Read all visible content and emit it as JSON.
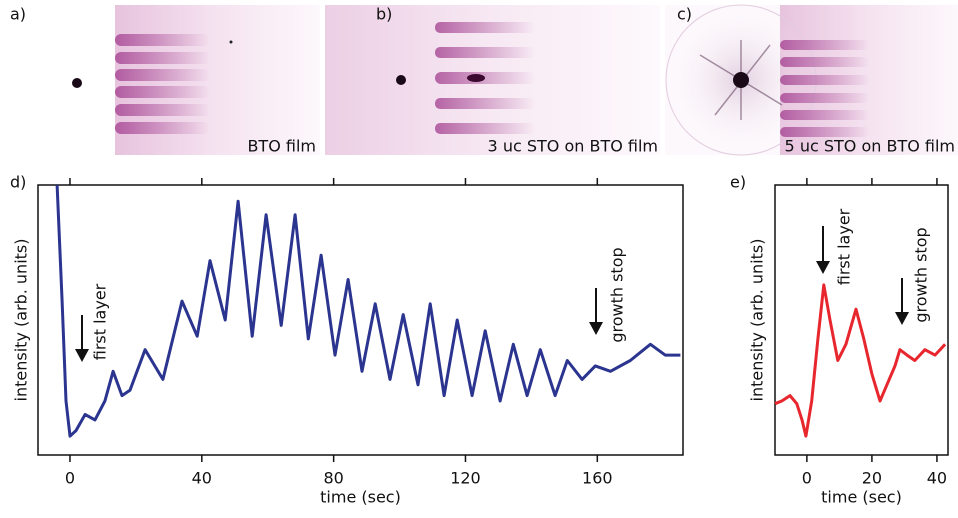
{
  "images": [
    {
      "label": "a)",
      "caption": "BTO film"
    },
    {
      "label": "b)",
      "caption": "3 uc STO on BTO film"
    },
    {
      "label": "c)",
      "caption": "5 uc STO on BTO film"
    }
  ],
  "chart_data": [
    {
      "type": "line",
      "panel_label": "d)",
      "xlabel": "time (sec)",
      "ylabel": "intensity (arb. units)",
      "color": "#2b3590",
      "annotations": [
        "first layer",
        "growth stop"
      ],
      "xlim": [
        -9.7,
        186
      ],
      "xticks": [
        0,
        40,
        80,
        120,
        160
      ],
      "ylim": [
        0,
        1
      ],
      "x": [
        -3.9,
        -2.4,
        -1.2,
        0,
        1.8,
        4.6,
        7.6,
        10.6,
        13.1,
        15.8,
        18.2,
        22.8,
        28.2,
        34,
        38.6,
        42.5,
        47.1,
        51,
        55.3,
        59.5,
        64.1,
        68.3,
        72.3,
        76.2,
        80.4,
        84.4,
        88.6,
        92.6,
        97.1,
        101.1,
        105.6,
        109.3,
        113.5,
        117.5,
        122,
        126,
        130.5,
        134.5,
        138.7,
        142.7,
        147.2,
        150.9,
        155.4,
        159.4,
        164,
        170,
        176.1,
        180.6,
        185.2
      ],
      "values": [
        1.0,
        0.57,
        0.2,
        0.07,
        0.09,
        0.15,
        0.13,
        0.2,
        0.31,
        0.22,
        0.24,
        0.39,
        0.28,
        0.57,
        0.44,
        0.72,
        0.5,
        0.94,
        0.44,
        0.89,
        0.48,
        0.89,
        0.43,
        0.74,
        0.37,
        0.65,
        0.31,
        0.56,
        0.28,
        0.52,
        0.26,
        0.56,
        0.22,
        0.5,
        0.22,
        0.46,
        0.2,
        0.41,
        0.22,
        0.39,
        0.22,
        0.35,
        0.28,
        0.33,
        0.31,
        0.35,
        0.41,
        0.37,
        0.37
      ]
    },
    {
      "type": "line",
      "panel_label": "e)",
      "xlabel": "time (sec)",
      "ylabel": "intensity (arb. units)",
      "color": "#e8262d",
      "annotations": [
        "first layer",
        "growth stop"
      ],
      "xlim": [
        -9.8,
        43.4
      ],
      "xticks": [
        0,
        20,
        40
      ],
      "ylim": [
        0,
        1
      ],
      "x": [
        -9.8,
        -7.7,
        -5.2,
        -3.1,
        -1.5,
        -0.3,
        1.5,
        3.4,
        5.2,
        7.1,
        9.5,
        12,
        15.1,
        17.5,
        20,
        22.5,
        24.6,
        27.1,
        28.6,
        30.8,
        33.2,
        36.3,
        39.4,
        42.5
      ],
      "values": [
        0.19,
        0.2,
        0.22,
        0.19,
        0.13,
        0.07,
        0.2,
        0.43,
        0.63,
        0.5,
        0.35,
        0.41,
        0.54,
        0.43,
        0.3,
        0.2,
        0.26,
        0.33,
        0.39,
        0.37,
        0.35,
        0.39,
        0.37,
        0.41
      ]
    }
  ]
}
